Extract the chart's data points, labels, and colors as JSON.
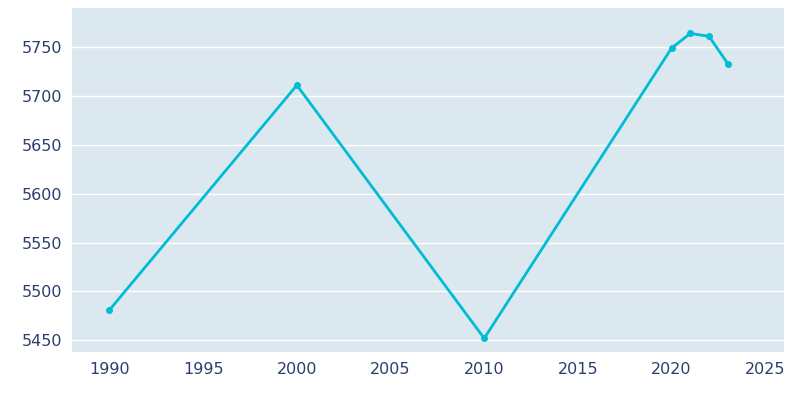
{
  "years": [
    1990,
    2000,
    2010,
    2020,
    2021,
    2022,
    2023
  ],
  "population": [
    5481,
    5711,
    5452,
    5749,
    5764,
    5761,
    5733
  ],
  "line_color": "#00bcd4",
  "marker": "o",
  "marker_size": 4,
  "line_width": 2,
  "background_color": "#dce8f0",
  "outer_background": "#ffffff",
  "grid_color": "#ffffff",
  "tick_color": "#2c3e6b",
  "xlim": [
    1988,
    2026
  ],
  "ylim": [
    5438,
    5790
  ],
  "xticks": [
    1990,
    1995,
    2000,
    2005,
    2010,
    2015,
    2020,
    2025
  ],
  "yticks": [
    5450,
    5500,
    5550,
    5600,
    5650,
    5700,
    5750
  ],
  "tick_fontsize": 11.5
}
